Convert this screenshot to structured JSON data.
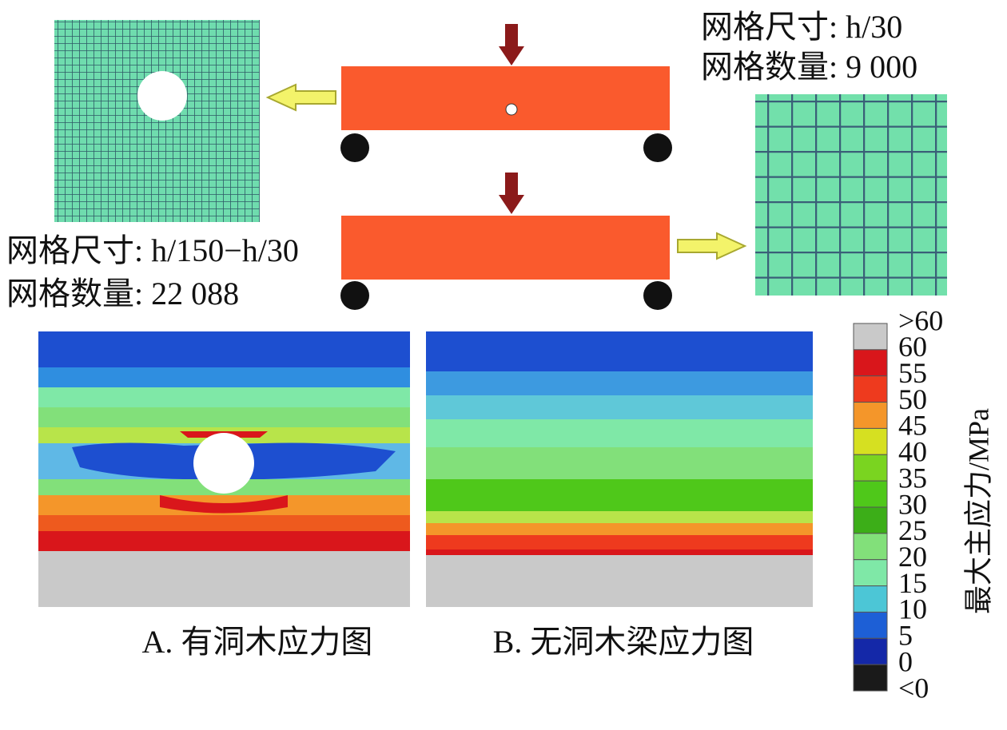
{
  "mesh_labels": {
    "coarse": {
      "size": "网格尺寸: h/30",
      "count": "网格数量: 9 000"
    },
    "fine": {
      "size": "网格尺寸:  h/150−h/30",
      "count": "网格数量: 22 088"
    }
  },
  "panels": [
    {
      "caption": "A. 有洞木应力图"
    },
    {
      "caption": "B. 无洞木梁应力图"
    }
  ],
  "colorbar": {
    "title": "最大主应力/MPa",
    "labels": [
      ">60",
      "60",
      "55",
      "50",
      "45",
      "40",
      "35",
      "30",
      "25",
      "20",
      "15",
      "10",
      "5",
      "0",
      "<0"
    ],
    "colors": [
      "#c9c9c9",
      "#d9161b",
      "#ee3a1e",
      "#f4962a",
      "#d6e021",
      "#7ad420",
      "#4fc81a",
      "#3cae18",
      "#82e07a",
      "#7fe8a7",
      "#4cc6d6",
      "#1d5fd6",
      "#1428a8",
      "#1a1a1a"
    ]
  }
}
